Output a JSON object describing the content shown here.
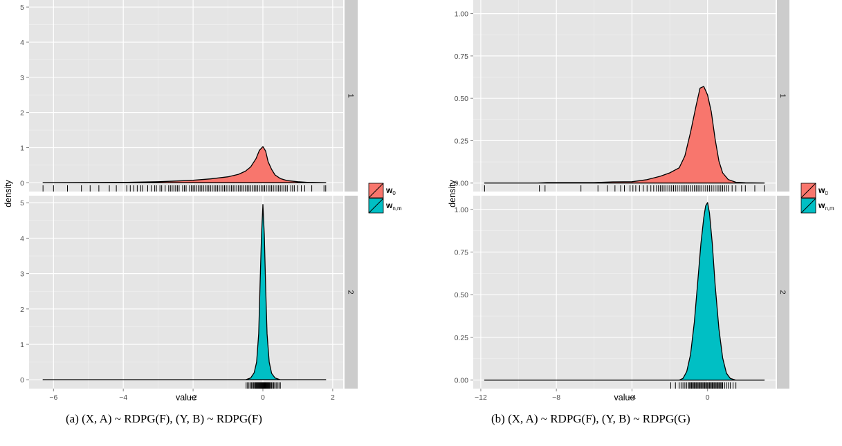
{
  "legend": {
    "entries": [
      {
        "label": "w",
        "sub": "0",
        "color": "#F8766D"
      },
      {
        "label": "w",
        "sub": "n,m",
        "color": "#00BFC4"
      }
    ]
  },
  "captions": {
    "a": "(a) (X, A) ~ RDPG(F), (Y, B) ~ RDPG(F)",
    "b": "(b) (X, A) ~ RDPG(F), (Y, B) ~ RDPG(G)"
  },
  "chart_data": [
    {
      "type": "area",
      "id": "a",
      "xlabel": "value",
      "ylabel": "density",
      "xlim": [
        -6.7,
        2.3
      ],
      "xticks": [
        -6,
        -4,
        -2,
        0,
        2
      ],
      "xtick_labels": [
        "−6",
        "−4",
        "−2",
        "0",
        "2"
      ],
      "grid": true,
      "legend_position": "right",
      "panels": [
        {
          "strip": "1",
          "fill": "#F8766D",
          "ylim": [
            -0.25,
            5.2
          ],
          "yticks": [
            0,
            1,
            2,
            3,
            4,
            5
          ],
          "ytick_labels": [
            "0",
            "1",
            "2",
            "3",
            "4",
            "5"
          ],
          "density": {
            "x": [
              -6.3,
              -4.0,
              -3.0,
              -2.5,
              -2.0,
              -1.5,
              -1.0,
              -0.7,
              -0.5,
              -0.35,
              -0.2,
              -0.1,
              0.0,
              0.08,
              0.15,
              0.25,
              0.35,
              0.5,
              0.7,
              1.0,
              1.3,
              1.8
            ],
            "y": [
              0.0,
              0.01,
              0.03,
              0.05,
              0.07,
              0.11,
              0.17,
              0.24,
              0.33,
              0.45,
              0.68,
              0.92,
              1.03,
              0.9,
              0.6,
              0.38,
              0.22,
              0.12,
              0.06,
              0.03,
              0.01,
              0.0
            ]
          },
          "rug": [
            -6.3,
            -6.0,
            -5.6,
            -5.2,
            -4.95,
            -4.7,
            -4.4,
            -4.2,
            -3.9,
            -3.8,
            -3.7,
            -3.6,
            -3.5,
            -3.45,
            -3.3,
            -3.2,
            -3.1,
            -3.05,
            -2.95,
            -2.9,
            -2.8,
            -2.7,
            -2.65,
            -2.6,
            -2.55,
            -2.5,
            -2.45,
            -2.4,
            -2.3,
            -2.25,
            -2.2,
            -2.1,
            -2.05,
            -2.0,
            -1.95,
            -1.9,
            -1.85,
            -1.8,
            -1.75,
            -1.7,
            -1.65,
            -1.6,
            -1.55,
            -1.5,
            -1.45,
            -1.4,
            -1.35,
            -1.3,
            -1.25,
            -1.2,
            -1.15,
            -1.1,
            -1.05,
            -1.0,
            -0.95,
            -0.9,
            -0.85,
            -0.8,
            -0.75,
            -0.7,
            -0.65,
            -0.6,
            -0.55,
            -0.5,
            -0.45,
            -0.4,
            -0.35,
            -0.3,
            -0.25,
            -0.2,
            -0.15,
            -0.1,
            -0.05,
            0.0,
            0.05,
            0.1,
            0.15,
            0.2,
            0.25,
            0.3,
            0.35,
            0.4,
            0.45,
            0.5,
            0.55,
            0.6,
            0.65,
            0.7,
            0.8,
            0.85,
            0.9,
            1.0,
            1.1,
            1.2,
            1.4,
            1.75,
            1.8
          ]
        },
        {
          "strip": "2",
          "fill": "#00BFC4",
          "ylim": [
            -0.25,
            5.2
          ],
          "yticks": [
            0,
            1,
            2,
            3,
            4,
            5
          ],
          "ytick_labels": [
            "0",
            "1",
            "2",
            "3",
            "4",
            "5"
          ],
          "density": {
            "x": [
              -6.3,
              -0.5,
              -0.35,
              -0.25,
              -0.18,
              -0.12,
              -0.08,
              -0.04,
              0.0,
              0.04,
              0.08,
              0.12,
              0.18,
              0.25,
              0.35,
              0.5,
              1.8
            ],
            "y": [
              0.0,
              0.0,
              0.05,
              0.2,
              0.5,
              1.3,
              2.7,
              4.1,
              4.95,
              4.1,
              2.6,
              1.3,
              0.5,
              0.18,
              0.05,
              0.0,
              0.0
            ]
          },
          "rug": [
            -0.48,
            -0.44,
            -0.4,
            -0.36,
            -0.33,
            -0.3,
            -0.27,
            -0.24,
            -0.22,
            -0.2,
            -0.18,
            -0.16,
            -0.14,
            -0.12,
            -0.1,
            -0.08,
            -0.06,
            -0.04,
            -0.02,
            0.0,
            0.02,
            0.04,
            0.06,
            0.08,
            0.1,
            0.12,
            0.14,
            0.16,
            0.18,
            0.2,
            0.22,
            0.25,
            0.28,
            0.31,
            0.34,
            0.38,
            0.42,
            0.46,
            0.5
          ]
        }
      ]
    },
    {
      "type": "area",
      "id": "b",
      "xlabel": "value",
      "ylabel": "density",
      "xlim": [
        -12.4,
        3.6
      ],
      "xticks": [
        -12,
        -8,
        -4,
        0
      ],
      "xtick_labels": [
        "−12",
        "−8",
        "−4",
        "0"
      ],
      "grid": true,
      "legend_position": "right",
      "panels": [
        {
          "strip": "1",
          "fill": "#F8766D",
          "ylim": [
            -0.05,
            1.08
          ],
          "yticks": [
            0.0,
            0.25,
            0.5,
            0.75,
            1.0
          ],
          "ytick_labels": [
            "0.00",
            "0.25",
            "0.50",
            "0.75",
            "1.00"
          ],
          "density": {
            "x": [
              -11.8,
              -9.0,
              -8.5,
              -6.0,
              -5.0,
              -4.0,
              -3.2,
              -2.5,
              -2.0,
              -1.5,
              -1.2,
              -0.9,
              -0.6,
              -0.4,
              -0.2,
              0.0,
              0.2,
              0.4,
              0.6,
              0.8,
              1.1,
              1.5,
              2.0,
              3.0
            ],
            "y": [
              0.0,
              0.0,
              0.003,
              0.003,
              0.007,
              0.008,
              0.02,
              0.04,
              0.06,
              0.09,
              0.16,
              0.3,
              0.46,
              0.56,
              0.57,
              0.52,
              0.42,
              0.26,
              0.13,
              0.06,
              0.02,
              0.005,
              0.002,
              0.0
            ]
          },
          "rug": [
            -11.8,
            -8.9,
            -8.6,
            -6.7,
            -5.8,
            -5.3,
            -4.9,
            -4.6,
            -4.4,
            -4.1,
            -3.95,
            -3.8,
            -3.6,
            -3.4,
            -3.2,
            -3.0,
            -2.85,
            -2.7,
            -2.6,
            -2.5,
            -2.4,
            -2.3,
            -2.2,
            -2.1,
            -2.0,
            -1.9,
            -1.8,
            -1.7,
            -1.6,
            -1.5,
            -1.4,
            -1.3,
            -1.2,
            -1.1,
            -1.0,
            -0.9,
            -0.8,
            -0.7,
            -0.6,
            -0.5,
            -0.4,
            -0.3,
            -0.2,
            -0.1,
            0.0,
            0.1,
            0.2,
            0.3,
            0.4,
            0.5,
            0.6,
            0.7,
            0.8,
            0.9,
            1.0,
            1.1,
            1.3,
            1.5,
            1.8,
            2.0,
            2.5,
            3.0
          ]
        },
        {
          "strip": "2",
          "fill": "#00BFC4",
          "ylim": [
            -0.05,
            1.08
          ],
          "yticks": [
            0.0,
            0.25,
            0.5,
            0.75,
            1.0
          ],
          "ytick_labels": [
            "0.00",
            "0.25",
            "0.50",
            "0.75",
            "1.00"
          ],
          "density": {
            "x": [
              -11.8,
              -1.5,
              -1.3,
              -1.1,
              -0.9,
              -0.7,
              -0.5,
              -0.35,
              -0.2,
              -0.1,
              0.0,
              0.1,
              0.25,
              0.4,
              0.6,
              0.8,
              1.0,
              1.2,
              1.5,
              3.0
            ],
            "y": [
              0.0,
              0.0,
              0.01,
              0.05,
              0.15,
              0.34,
              0.6,
              0.8,
              0.95,
              1.02,
              1.04,
              0.98,
              0.8,
              0.56,
              0.3,
              0.13,
              0.04,
              0.01,
              0.0,
              0.0
            ]
          },
          "rug": [
            -1.95,
            -1.7,
            -1.5,
            -1.4,
            -1.3,
            -1.2,
            -1.1,
            -1.0,
            -0.95,
            -0.9,
            -0.85,
            -0.8,
            -0.75,
            -0.7,
            -0.65,
            -0.6,
            -0.55,
            -0.5,
            -0.45,
            -0.4,
            -0.35,
            -0.3,
            -0.25,
            -0.2,
            -0.15,
            -0.1,
            -0.05,
            0.0,
            0.05,
            0.1,
            0.15,
            0.2,
            0.25,
            0.3,
            0.35,
            0.4,
            0.45,
            0.5,
            0.55,
            0.6,
            0.65,
            0.7,
            0.75,
            0.8,
            0.9,
            1.0,
            1.1,
            1.2,
            1.35,
            1.5
          ]
        }
      ]
    }
  ]
}
